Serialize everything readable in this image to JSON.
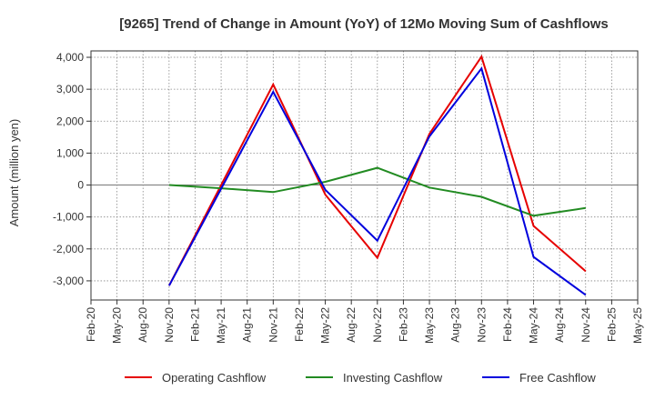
{
  "chart_data": {
    "type": "line",
    "title": "[9265]  Trend of Change in Amount (YoY) of 12Mo Moving Sum of Cashflows",
    "xlabel": "",
    "ylabel": "Amount (million yen)",
    "ylim": [
      -3600,
      4200
    ],
    "yticks": [
      4000,
      3000,
      2000,
      1000,
      0,
      -1000,
      -2000,
      -3000
    ],
    "ytick_labels": [
      "4,000",
      "3,000",
      "2,000",
      "1,000",
      "0",
      "-1,000",
      "-2,000",
      "-3,000"
    ],
    "categories": [
      "Feb-20",
      "May-20",
      "Aug-20",
      "Nov-20",
      "Feb-21",
      "May-21",
      "Aug-21",
      "Nov-21",
      "Feb-22",
      "May-22",
      "Aug-22",
      "Nov-22",
      "Feb-23",
      "May-23",
      "Aug-23",
      "Nov-23",
      "Feb-24",
      "May-24",
      "Aug-24",
      "Nov-24",
      "Feb-25",
      "May-25"
    ],
    "grid": true,
    "legend_position": "bottom",
    "series": [
      {
        "name": "Operating Cashflow",
        "color": "#e60000",
        "points": [
          [
            "Nov-20",
            -3150
          ],
          [
            "Nov-21",
            3150
          ],
          [
            "May-22",
            -300
          ],
          [
            "Nov-22",
            -2280
          ],
          [
            "May-23",
            1600
          ],
          [
            "Nov-23",
            4020
          ],
          [
            "May-24",
            -1280
          ],
          [
            "Nov-24",
            -2700
          ]
        ]
      },
      {
        "name": "Investing Cashflow",
        "color": "#228b22",
        "points": [
          [
            "Nov-20",
            0
          ],
          [
            "May-21",
            -100
          ],
          [
            "Nov-21",
            -220
          ],
          [
            "May-22",
            100
          ],
          [
            "Nov-22",
            540
          ],
          [
            "May-23",
            -80
          ],
          [
            "Nov-23",
            -370
          ],
          [
            "May-24",
            -960
          ],
          [
            "Nov-24",
            -720
          ]
        ]
      },
      {
        "name": "Free Cashflow",
        "color": "#0000dd",
        "points": [
          [
            "Nov-20",
            -3150
          ],
          [
            "Nov-21",
            2920
          ],
          [
            "May-22",
            -150
          ],
          [
            "Nov-22",
            -1740
          ],
          [
            "May-23",
            1520
          ],
          [
            "Nov-23",
            3650
          ],
          [
            "May-24",
            -2250
          ],
          [
            "Nov-24",
            -3440
          ]
        ]
      }
    ]
  }
}
